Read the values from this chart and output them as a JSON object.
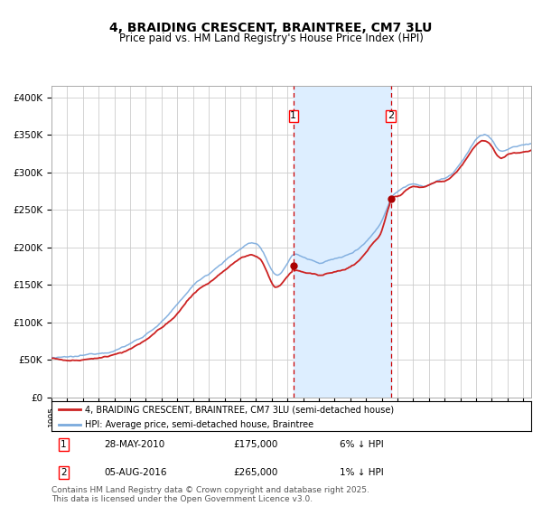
{
  "title": "4, BRAIDING CRESCENT, BRAINTREE, CM7 3LU",
  "subtitle": "Price paid vs. HM Land Registry's House Price Index (HPI)",
  "title_fontsize": 10,
  "subtitle_fontsize": 8.5,
  "background_color": "#ffffff",
  "plot_bg_color": "#ffffff",
  "grid_color": "#cccccc",
  "ylabel_ticks": [
    "£0",
    "£50K",
    "£100K",
    "£150K",
    "£200K",
    "£250K",
    "£300K",
    "£350K",
    "£400K"
  ],
  "ytick_values": [
    0,
    50000,
    100000,
    150000,
    200000,
    250000,
    300000,
    350000,
    400000
  ],
  "ylim": [
    0,
    415000
  ],
  "xlim_start": 1995,
  "xlim_end": 2025.5,
  "purchase1_date": 2010.38,
  "purchase1_price": 175000,
  "purchase2_date": 2016.58,
  "purchase2_price": 265000,
  "shade_color": "#ddeeff",
  "vline_color": "#cc0000",
  "red_line_color": "#cc2222",
  "blue_line_color": "#7aaadd",
  "marker_color": "#aa0000",
  "legend_label1": "4, BRAIDING CRESCENT, BRAINTREE, CM7 3LU (semi-detached house)",
  "legend_label2": "HPI: Average price, semi-detached house, Braintree",
  "footer": "Contains HM Land Registry data © Crown copyright and database right 2025.\nThis data is licensed under the Open Government Licence v3.0.",
  "footer_fontsize": 6.5,
  "seed": 12345
}
